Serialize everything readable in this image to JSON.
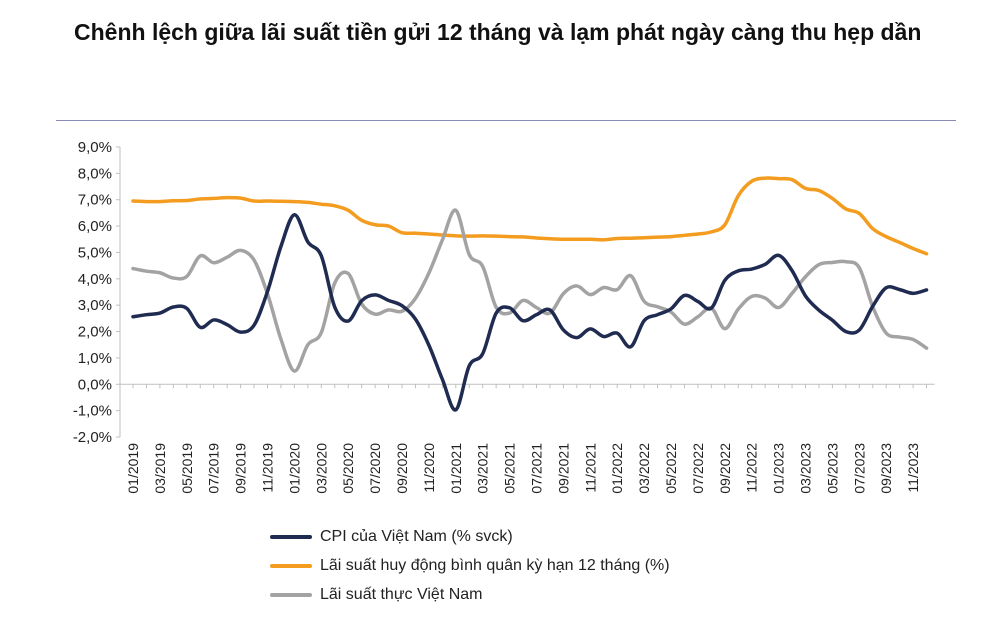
{
  "title": "Chênh lệch giữa lãi suất tiền gửi 12 tháng và lạm phát ngày càng thu hẹp dần",
  "chart_data": {
    "type": "line",
    "title": "Chênh lệch giữa lãi suất tiền gửi 12 tháng và lạm phát ngày càng thu hẹp dần",
    "y_tick_labels": [
      "9,0%",
      "8,0%",
      "7,0%",
      "6,0%",
      "5,0%",
      "4,0%",
      "3,0%",
      "2,0%",
      "1,0%",
      "0,0%",
      "-1,0%",
      "-2,0%"
    ],
    "ylim": [
      -2.0,
      9.0
    ],
    "x_tick_labels": [
      "01/2019",
      "03/2019",
      "05/2019",
      "07/2019",
      "09/2019",
      "11/2019",
      "01/2020",
      "03/2020",
      "05/2020",
      "07/2020",
      "09/2020",
      "11/2020",
      "01/2021",
      "03/2021",
      "05/2021",
      "07/2021",
      "09/2021",
      "11/2021",
      "01/2022",
      "03/2022",
      "05/2022",
      "07/2022",
      "09/2022",
      "11/2022",
      "01/2023",
      "03/2023",
      "05/2023",
      "07/2023",
      "09/2023",
      "11/2023"
    ],
    "x": [
      "01/2019",
      "02/2019",
      "03/2019",
      "04/2019",
      "05/2019",
      "06/2019",
      "07/2019",
      "08/2019",
      "09/2019",
      "10/2019",
      "11/2019",
      "12/2019",
      "01/2020",
      "02/2020",
      "03/2020",
      "04/2020",
      "05/2020",
      "06/2020",
      "07/2020",
      "08/2020",
      "09/2020",
      "10/2020",
      "11/2020",
      "12/2020",
      "01/2021",
      "02/2021",
      "03/2021",
      "04/2021",
      "05/2021",
      "06/2021",
      "07/2021",
      "08/2021",
      "09/2021",
      "10/2021",
      "11/2021",
      "12/2021",
      "01/2022",
      "02/2022",
      "03/2022",
      "04/2022",
      "05/2022",
      "06/2022",
      "07/2022",
      "08/2022",
      "09/2022",
      "10/2022",
      "11/2022",
      "12/2022",
      "01/2023",
      "02/2023",
      "03/2023",
      "04/2023",
      "05/2023",
      "06/2023",
      "07/2023",
      "08/2023",
      "09/2023",
      "10/2023",
      "11/2023",
      "12/2023"
    ],
    "grid": false,
    "legend_position": "bottom",
    "series": [
      {
        "name": "CPI của Việt Nam (% svck)",
        "color": "#1f2b50",
        "values": [
          2.56,
          2.64,
          2.7,
          2.93,
          2.88,
          2.16,
          2.44,
          2.26,
          1.98,
          2.24,
          3.52,
          5.23,
          6.43,
          5.4,
          4.87,
          2.93,
          2.4,
          3.17,
          3.39,
          3.18,
          2.98,
          2.47,
          1.48,
          0.19,
          -0.97,
          0.7,
          1.16,
          2.7,
          2.9,
          2.41,
          2.64,
          2.82,
          2.06,
          1.77,
          2.1,
          1.81,
          1.94,
          1.42,
          2.41,
          2.64,
          2.86,
          3.37,
          3.14,
          2.89,
          3.94,
          4.3,
          4.37,
          4.55,
          4.89,
          4.31,
          3.35,
          2.81,
          2.43,
          2.0,
          2.06,
          2.96,
          3.66,
          3.59,
          3.45,
          3.58
        ]
      },
      {
        "name": "Lãi suất huy động bình quân kỳ hạn 12 tháng (%)",
        "color": "#f39c1f",
        "values": [
          6.95,
          6.93,
          6.93,
          6.96,
          6.97,
          7.03,
          7.05,
          7.08,
          7.06,
          6.95,
          6.95,
          6.94,
          6.93,
          6.9,
          6.83,
          6.77,
          6.6,
          6.22,
          6.05,
          6.0,
          5.75,
          5.73,
          5.7,
          5.66,
          5.63,
          5.62,
          5.63,
          5.62,
          5.6,
          5.59,
          5.55,
          5.52,
          5.5,
          5.5,
          5.5,
          5.48,
          5.53,
          5.54,
          5.56,
          5.58,
          5.6,
          5.65,
          5.7,
          5.78,
          6.05,
          7.15,
          7.7,
          7.82,
          7.8,
          7.76,
          7.43,
          7.35,
          7.05,
          6.65,
          6.48,
          5.9,
          5.6,
          5.38,
          5.15,
          4.95
        ]
      },
      {
        "name": "Lãi suất thực Việt Nam",
        "color": "#a3a3a3",
        "values": [
          4.39,
          4.29,
          4.23,
          4.03,
          4.09,
          4.87,
          4.61,
          4.82,
          5.08,
          4.71,
          3.43,
          1.71,
          0.5,
          1.5,
          1.96,
          3.84,
          4.2,
          3.05,
          2.66,
          2.82,
          2.77,
          3.26,
          4.22,
          5.47,
          6.6,
          4.92,
          4.47,
          2.92,
          2.7,
          3.18,
          2.91,
          2.7,
          3.44,
          3.73,
          3.4,
          3.67,
          3.59,
          4.12,
          3.15,
          2.94,
          2.74,
          2.28,
          2.56,
          2.89,
          2.11,
          2.85,
          3.33,
          3.27,
          2.91,
          3.45,
          4.08,
          4.54,
          4.62,
          4.65,
          4.42,
          2.94,
          1.94,
          1.79,
          1.7,
          1.37
        ]
      }
    ]
  }
}
